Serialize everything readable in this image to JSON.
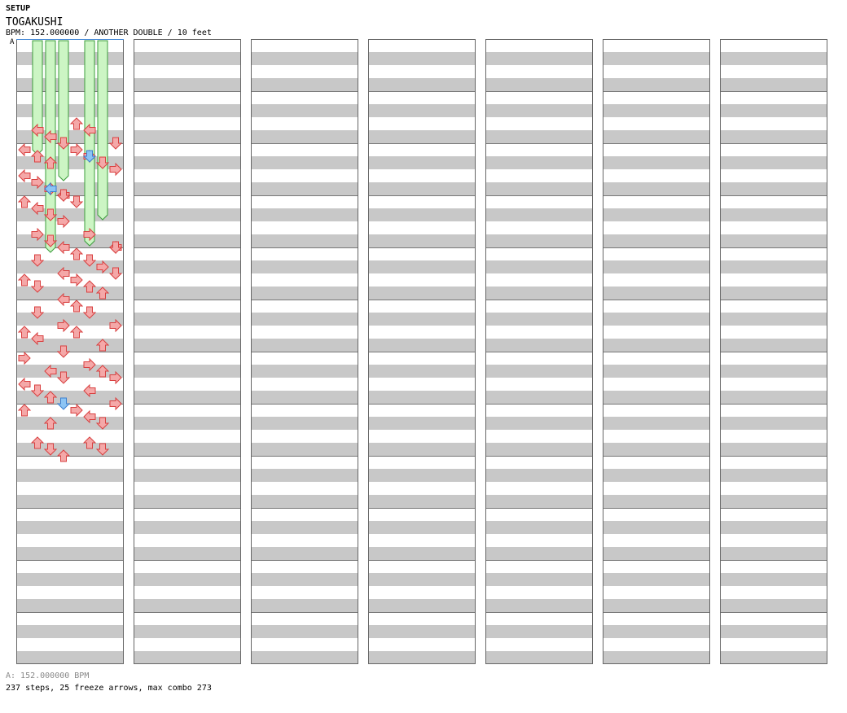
{
  "section": "SETUP",
  "title": "TOGAKUSHI",
  "meta": "BPM: 152.000000 / ANOTHER DOUBLE / 10 feet",
  "bpm_marker": "A",
  "footer": {
    "bpm_line": "A: 152.000000 BPM",
    "stats": "237 steps, 25 freeze arrows, max combo 273"
  },
  "colors": {
    "note_red": "#f4a8a8",
    "note_red_stroke": "#d94040",
    "note_blue": "#8cc4f4",
    "note_blue_stroke": "#3a7ed0",
    "freeze_fill": "#ccf5c4",
    "freeze_stroke": "#3c9d3c",
    "band": "#c8c8c8",
    "column_border": "#666666",
    "bpm_line": "#4a8cd8"
  },
  "chart_data": {
    "type": "step-chart",
    "lanes": [
      "1P-left",
      "1P-down",
      "1P-up",
      "1P-right",
      "2P-left",
      "2P-down",
      "2P-up",
      "2P-right"
    ],
    "columns": 7,
    "measures_per_column": 12,
    "rows_per_measure": 8,
    "notes": [
      [
        3,
        3,
        "D",
        "r"
      ],
      [
        3,
        4,
        "U",
        "r"
      ],
      [
        3,
        5,
        "L",
        "r"
      ],
      [
        3,
        7,
        "D",
        "r"
      ],
      [
        3,
        9,
        "L",
        "r"
      ],
      [
        3,
        10,
        "L",
        "r"
      ],
      [
        4,
        2,
        "U",
        "r"
      ],
      [
        4,
        4,
        "R",
        "r"
      ],
      [
        4,
        5,
        "R",
        "r"
      ],
      [
        4,
        5,
        "D",
        "b"
      ],
      [
        4,
        6,
        "D",
        "r"
      ],
      [
        4,
        7,
        "R",
        "r"
      ],
      [
        4,
        8,
        "L",
        "r"
      ],
      [
        4,
        9,
        "U",
        "r"
      ],
      [
        4,
        10,
        "U",
        "r"
      ],
      [
        5,
        0,
        "L",
        "r"
      ],
      [
        5,
        1,
        "R",
        "r"
      ],
      [
        5,
        2,
        "R",
        "r"
      ],
      [
        5,
        2,
        "L",
        "b"
      ],
      [
        5,
        3,
        "L",
        "r"
      ],
      [
        5,
        3,
        "D",
        "r"
      ],
      [
        6,
        0,
        "U",
        "r"
      ],
      [
        6,
        1,
        "L",
        "r"
      ],
      [
        6,
        2,
        "D",
        "r"
      ],
      [
        6,
        3,
        "R",
        "r"
      ],
      [
        6,
        4,
        "D",
        "r"
      ],
      [
        7,
        1,
        "R",
        "r"
      ],
      [
        7,
        2,
        "D",
        "r"
      ],
      [
        7,
        3,
        "L",
        "r"
      ],
      [
        7,
        5,
        "R",
        "r"
      ],
      [
        7,
        7,
        "L",
        "r"
      ],
      [
        7,
        7,
        "D",
        "r"
      ],
      [
        8,
        1,
        "D",
        "r"
      ],
      [
        8,
        3,
        "L",
        "r"
      ],
      [
        8,
        4,
        "U",
        "r"
      ],
      [
        8,
        5,
        "D",
        "r"
      ],
      [
        8,
        6,
        "R",
        "r"
      ],
      [
        8,
        7,
        "D",
        "r"
      ],
      [
        9,
        0,
        "U",
        "r"
      ],
      [
        9,
        1,
        "D",
        "r"
      ],
      [
        9,
        3,
        "L",
        "r"
      ],
      [
        9,
        4,
        "R",
        "r"
      ],
      [
        9,
        5,
        "U",
        "r"
      ],
      [
        9,
        6,
        "U",
        "r"
      ],
      [
        10,
        1,
        "D",
        "r"
      ],
      [
        10,
        3,
        "R",
        "r"
      ],
      [
        10,
        4,
        "U",
        "r"
      ],
      [
        10,
        5,
        "D",
        "r"
      ],
      [
        10,
        7,
        "R",
        "r"
      ],
      [
        11,
        0,
        "U",
        "r"
      ],
      [
        11,
        1,
        "L",
        "r"
      ],
      [
        11,
        3,
        "D",
        "r"
      ],
      [
        11,
        4,
        "U",
        "r"
      ],
      [
        11,
        6,
        "U",
        "r"
      ],
      [
        12,
        0,
        "R",
        "r"
      ],
      [
        12,
        2,
        "L",
        "r"
      ],
      [
        12,
        3,
        "D",
        "r"
      ],
      [
        12,
        5,
        "R",
        "r"
      ],
      [
        12,
        6,
        "U",
        "r"
      ],
      [
        12,
        7,
        "R",
        "r"
      ],
      [
        13,
        0,
        "L",
        "r"
      ],
      [
        13,
        1,
        "D",
        "r"
      ],
      [
        13,
        2,
        "U",
        "r"
      ],
      [
        13,
        3,
        "D",
        "b"
      ],
      [
        13,
        5,
        "L",
        "r"
      ],
      [
        13,
        7,
        "R",
        "r"
      ],
      [
        14,
        0,
        "U",
        "r"
      ],
      [
        14,
        2,
        "U",
        "r"
      ],
      [
        14,
        4,
        "R",
        "r"
      ],
      [
        14,
        5,
        "L",
        "r"
      ],
      [
        14,
        6,
        "D",
        "r"
      ],
      [
        15,
        1,
        "U",
        "r"
      ],
      [
        15,
        2,
        "D",
        "r"
      ],
      [
        15,
        3,
        "U",
        "r"
      ],
      [
        15,
        5,
        "U",
        "r"
      ],
      [
        15,
        6,
        "D",
        "r"
      ]
    ],
    "freezes": [
      [
        0,
        14,
        2,
        3,
        7
      ],
      [
        0,
        16,
        1,
        2,
        2
      ],
      [
        0,
        31,
        2,
        3,
        9
      ],
      [
        0,
        26,
        6,
        5,
        14
      ],
      [
        0,
        18,
        3,
        2,
        4
      ],
      [
        0,
        20,
        3,
        3,
        6
      ],
      [
        0,
        22,
        5,
        6,
        13
      ],
      [
        0,
        30,
        5,
        1,
        8
      ]
    ]
  }
}
